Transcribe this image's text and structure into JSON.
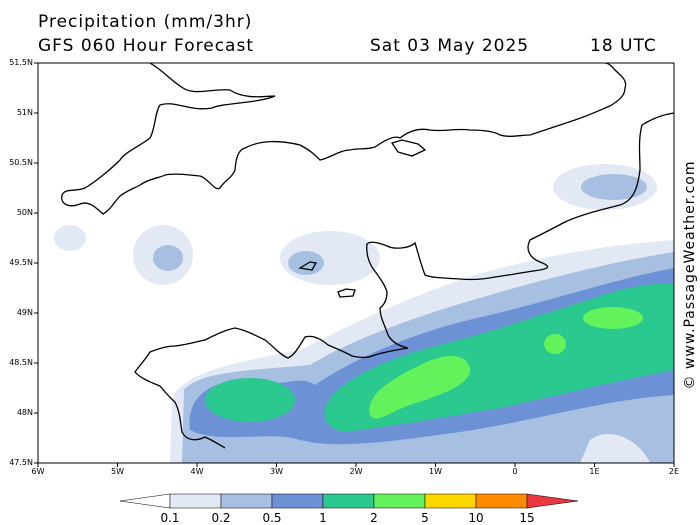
{
  "header": {
    "title": "Precipitation (mm/3hr)",
    "forecast": "GFS 060 Hour Forecast",
    "date": "Sat 03 May 2025",
    "time": "18 UTC"
  },
  "credit": "© www.PassageWeather.com",
  "map": {
    "lat_labels": [
      "51.5N",
      "51N",
      "50.5N",
      "50N",
      "49.5N",
      "49N",
      "48.5N",
      "48N",
      "47.5N"
    ],
    "lon_labels": [
      "6W",
      "5W",
      "4W",
      "3W",
      "2W",
      "1W",
      "0",
      "1E",
      "2E"
    ],
    "lat_range": [
      47.5,
      51.5
    ],
    "lon_range": [
      -6,
      2
    ],
    "coastline_color": "#000000"
  },
  "colorbar": {
    "labels": [
      "0.1",
      "0.2",
      "0.5",
      "1",
      "2",
      "5",
      "10",
      "15"
    ],
    "colors": [
      "#ffffff",
      "#e2e9f5",
      "#a7bfe1",
      "#6c91d5",
      "#2bc98f",
      "#63f25c",
      "#ffd700",
      "#ff8c00",
      "#e8383f"
    ]
  }
}
